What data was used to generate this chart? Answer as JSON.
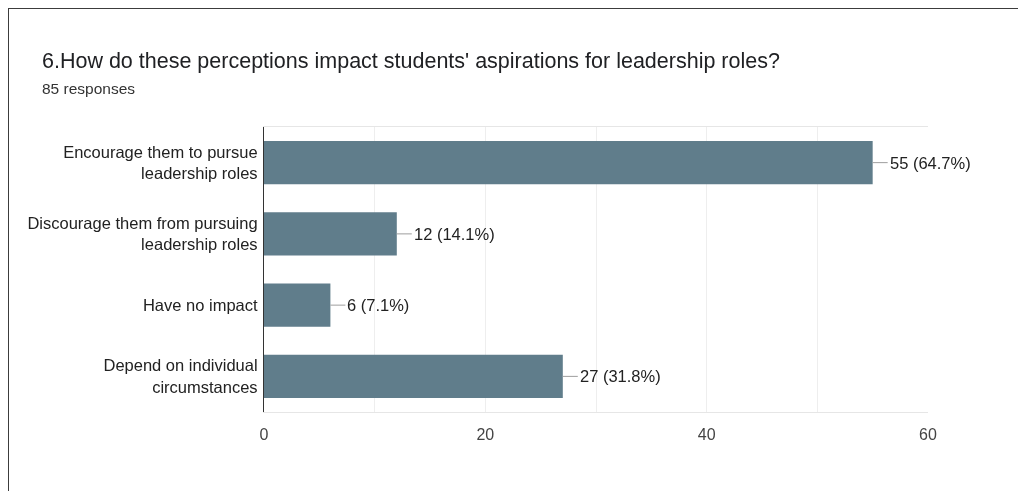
{
  "chart_data": {
    "type": "bar",
    "orientation": "horizontal",
    "title": "6.How do these perceptions impact students' aspirations for leadership roles?",
    "subtitle": "85 responses",
    "categories": [
      "Encourage them to pursue leadership roles",
      "Discourage them from pursuing leadership roles",
      "Have no impact",
      "Depend on individual circumstances"
    ],
    "values": [
      55,
      12,
      6,
      27
    ],
    "value_labels": [
      "55 (64.7%)",
      "12 (14.1%)",
      "6 (7.1%)",
      "27 (31.8%)"
    ],
    "color": "#607d8b",
    "xlim": [
      0,
      60
    ],
    "xticks": [
      0,
      {
        "value": 10,
        "label": null
      },
      20,
      {
        "value": 30,
        "label": null
      },
      40,
      {
        "value": 50,
        "label": null
      },
      60
    ],
    "grid": "x"
  }
}
